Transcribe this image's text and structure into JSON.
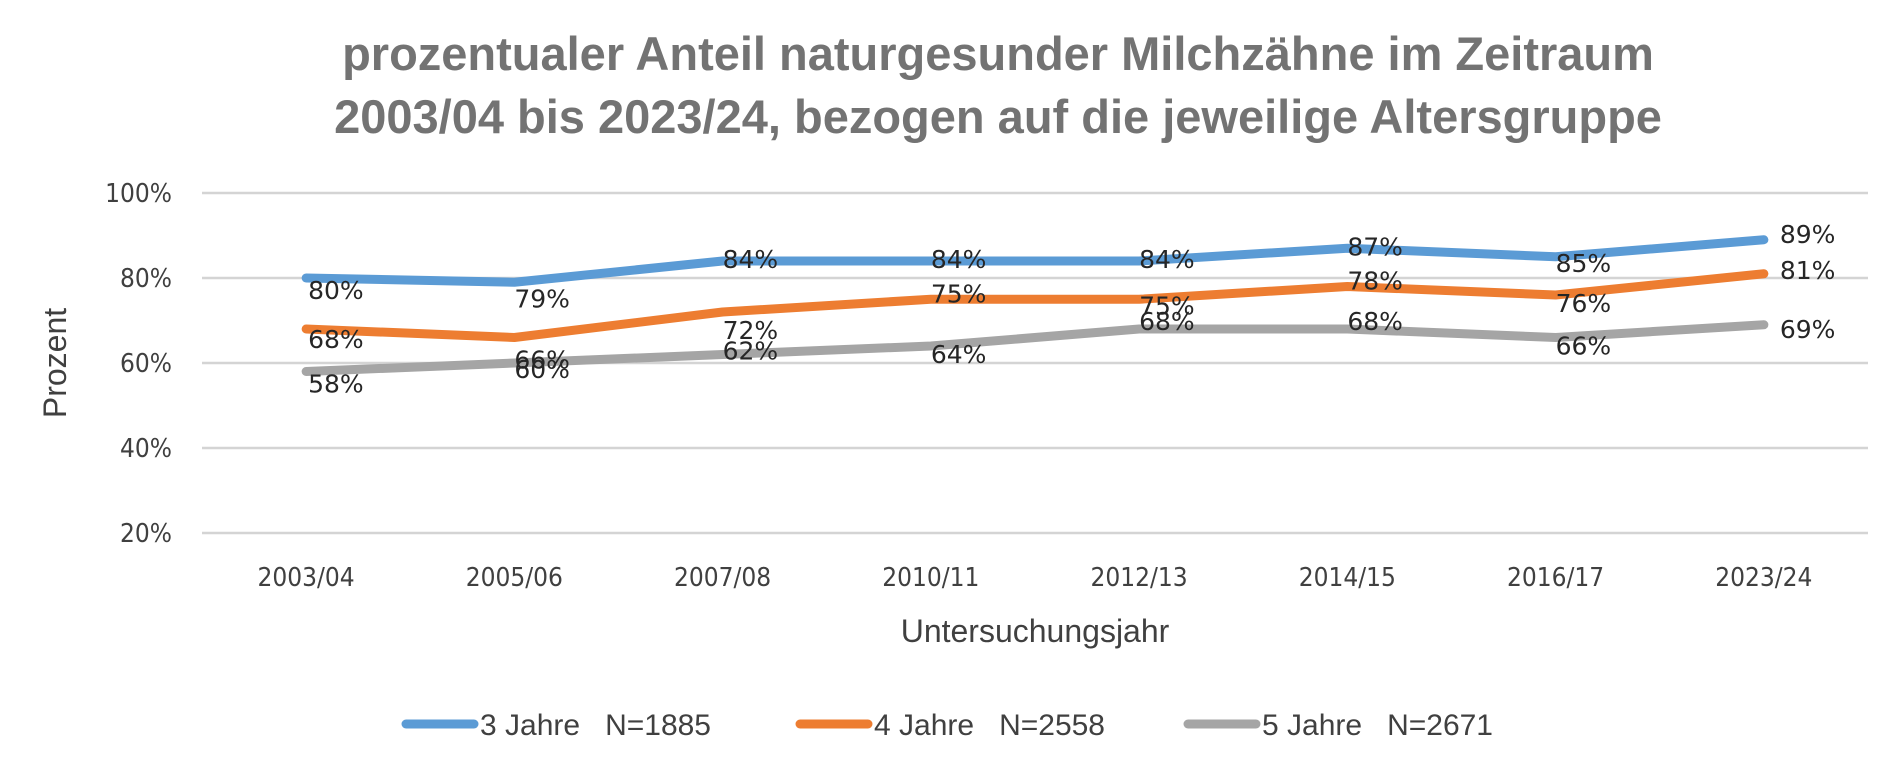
{
  "chart_data": {
    "type": "line",
    "title": [
      "prozentualer Anteil naturgesunder Milchzähne im Zeitraum",
      "2003/04 bis 2023/24, bezogen auf die jeweilige Altersgruppe"
    ],
    "xlabel": "Untersuchungsjahr",
    "ylabel": "Prozent",
    "categories": [
      "2003/04",
      "2005/06",
      "2007/08",
      "2010/11",
      "2012/13",
      "2014/15",
      "2016/17",
      "2023/24"
    ],
    "ylim": [
      20,
      100
    ],
    "yticks": [
      100,
      80,
      60,
      40,
      20
    ],
    "ytick_labels": [
      "100%",
      "80%",
      "60%",
      "40%",
      "20%"
    ],
    "grid": true,
    "legend_position": "bottom",
    "series": [
      {
        "name": "3 Jahre   N=1885",
        "color": "#5b9bd5",
        "values": [
          80,
          79,
          84,
          84,
          84,
          87,
          85,
          89
        ]
      },
      {
        "name": "4 Jahre   N=2558",
        "color": "#ed7d31",
        "values": [
          68,
          66,
          72,
          75,
          75,
          78,
          76,
          81
        ]
      },
      {
        "name": "5 Jahre   N=2671",
        "color": "#a5a5a5",
        "values": [
          58,
          60,
          62,
          64,
          68,
          68,
          66,
          69
        ]
      }
    ]
  }
}
